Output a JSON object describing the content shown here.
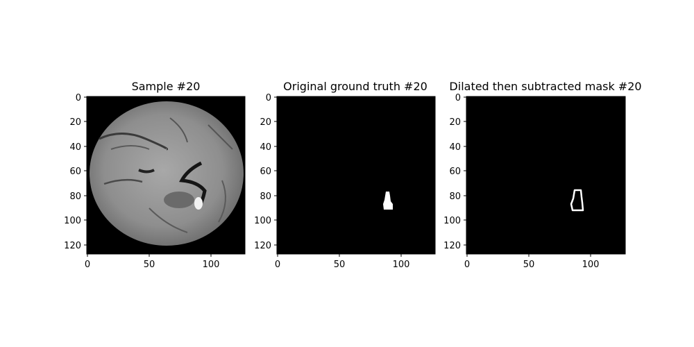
{
  "panels": [
    {
      "title": "Sample #20",
      "kind": "brain-flair-slice",
      "x_ticks": [
        "0",
        "50",
        "100"
      ],
      "y_ticks": [
        "0",
        "20",
        "40",
        "60",
        "80",
        "100",
        "120"
      ]
    },
    {
      "title": "Original ground truth #20",
      "kind": "filled-lesion-mask",
      "x_ticks": [
        "0",
        "50",
        "100"
      ],
      "y_ticks": [
        "0",
        "20",
        "40",
        "60",
        "80",
        "100",
        "120"
      ]
    },
    {
      "title": "Dilated then subtracted mask #20",
      "kind": "outline-lesion-mask",
      "x_ticks": [
        "0",
        "50",
        "100"
      ],
      "y_ticks": [
        "0",
        "20",
        "40",
        "60",
        "80",
        "100",
        "120"
      ]
    }
  ],
  "colors": {
    "background": "#000000",
    "mask": "#ffffff",
    "brain": "#9a9a9a"
  }
}
